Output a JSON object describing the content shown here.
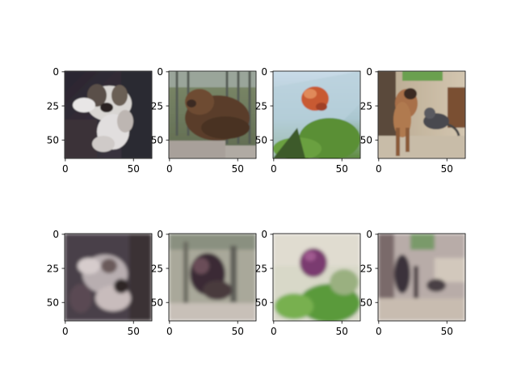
{
  "chart_data": {
    "type": "image-grid",
    "rows": 2,
    "cols": 4,
    "image_size": 64,
    "xticks": [
      0,
      50
    ],
    "yticks": [
      0,
      25,
      50
    ],
    "xlim": [
      -0.5,
      63.5
    ],
    "ylim": [
      63.5,
      -0.5
    ],
    "panels": [
      {
        "subject": "shih tzu dog lying on couch",
        "kind": "original"
      },
      {
        "subject": "brown bear in enclosure",
        "kind": "original"
      },
      {
        "subject": "goldfish in plastic bag",
        "kind": "original"
      },
      {
        "subject": "boxer dog with cat",
        "kind": "original"
      },
      {
        "subject": "shih tzu dog lying on couch",
        "kind": "reconstruction"
      },
      {
        "subject": "brown bear in enclosure",
        "kind": "reconstruction"
      },
      {
        "subject": "goldfish in plastic bag",
        "kind": "reconstruction"
      },
      {
        "subject": "boxer dog with cat",
        "kind": "reconstruction"
      }
    ]
  }
}
